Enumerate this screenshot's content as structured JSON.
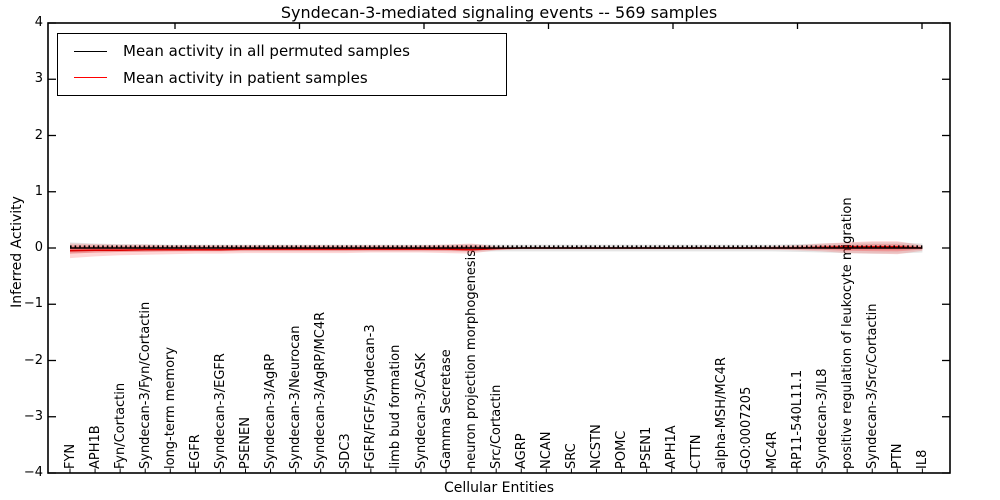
{
  "title": "Syndecan-3-mediated signaling events -- 569 samples",
  "axes": {
    "x_label": "Cellular Entities",
    "y_label": "Inferred Activity",
    "y_tick_labels": [
      "4",
      "3",
      "2",
      "1",
      "0",
      "−1",
      "−2",
      "−3",
      "−4"
    ]
  },
  "legend": {
    "items": [
      {
        "label": "Mean activity in all permuted samples",
        "color": "#000000"
      },
      {
        "label": "Mean activity in patient samples",
        "color": "#ff0000"
      }
    ]
  },
  "chart_data": {
    "type": "line",
    "title": "Syndecan-3-mediated signaling events -- 569 samples",
    "xlabel": "Cellular Entities",
    "ylabel": "Inferred Activity",
    "ylim": [
      -4,
      4
    ],
    "yticks": [
      4,
      3,
      2,
      1,
      0,
      -1,
      -2,
      -3,
      -4
    ],
    "grid": false,
    "legend_position": "upper left",
    "x_tick_rotation": 90,
    "categories": [
      "FYN",
      "APH1B",
      "Fyn/Cortactin",
      "Syndecan-3/Fyn/Cortactin",
      "long-term memory",
      "EGFR",
      "Syndecan-3/EGFR",
      "PSENEN",
      "Syndecan-3/AgRP",
      "Syndecan-3/Neurocan",
      "Syndecan-3/AgRP/MC4R",
      "SDC3",
      "FGFR/FGF/Syndecan-3",
      "limb bud formation",
      "Syndecan-3/CASK",
      "Gamma Secretase",
      "neuron projection morphogenesis",
      "Src/Cortactin",
      "AGRP",
      "NCAN",
      "SRC",
      "NCSTN",
      "POMC",
      "PSEN1",
      "APH1A",
      "CTTN",
      "alpha-MSH/MC4R",
      "GO:0007205",
      "MC4R",
      "RP11-540L11.1",
      "Syndecan-3/IL8",
      "positive regulation of leukocyte migration",
      "Syndecan-3/Src/Cortactin",
      "PTN",
      "IL8"
    ],
    "series": [
      {
        "name": "Mean activity in all permuted samples",
        "color": "#000000",
        "style": "solid with dotted overlay",
        "values": [
          0,
          0,
          0,
          0,
          0,
          0,
          0,
          0,
          0,
          0,
          0,
          0,
          0,
          0,
          0,
          0,
          0,
          0,
          0,
          0,
          0,
          0,
          0,
          0,
          0,
          0,
          0,
          0,
          0,
          0,
          0,
          0,
          0,
          0,
          0
        ]
      },
      {
        "name": "Mean activity in patient samples",
        "color": "#ff0000",
        "style": "solid",
        "values": [
          -0.05,
          -0.04,
          -0.04,
          -0.03,
          -0.03,
          -0.03,
          -0.03,
          -0.02,
          -0.02,
          -0.02,
          -0.02,
          -0.02,
          -0.02,
          -0.02,
          -0.02,
          -0.02,
          -0.03,
          -0.01,
          0,
          0,
          0,
          0,
          0,
          0,
          0,
          0,
          0,
          0,
          0,
          0,
          0.01,
          0.02,
          0.02,
          0.02,
          0
        ]
      }
    ],
    "patient_band": {
      "color": "#ff0000",
      "upper": [
        0.08,
        0.07,
        0.06,
        0.06,
        0.05,
        0.05,
        0.05,
        0.05,
        0.05,
        0.05,
        0.05,
        0.05,
        0.05,
        0.05,
        0.05,
        0.06,
        0.08,
        0.03,
        0.02,
        0.02,
        0.02,
        0.02,
        0.02,
        0.02,
        0.02,
        0.02,
        0.02,
        0.02,
        0.03,
        0.05,
        0.08,
        0.1,
        0.12,
        0.12,
        0.05
      ],
      "lower": [
        -0.18,
        -0.15,
        -0.13,
        -0.12,
        -0.11,
        -0.1,
        -0.1,
        -0.09,
        -0.09,
        -0.09,
        -0.09,
        -0.09,
        -0.08,
        -0.08,
        -0.08,
        -0.09,
        -0.1,
        -0.04,
        -0.02,
        -0.02,
        -0.02,
        -0.02,
        -0.02,
        -0.02,
        -0.02,
        -0.02,
        -0.02,
        -0.02,
        -0.03,
        -0.04,
        -0.06,
        -0.09,
        -0.1,
        -0.11,
        -0.05
      ]
    },
    "permuted_band": {
      "color": "#888888",
      "upper": [
        0.1,
        0.08,
        0.07,
        0.07,
        0.06,
        0.06,
        0.06,
        0.06,
        0.06,
        0.06,
        0.06,
        0.06,
        0.06,
        0.06,
        0.06,
        0.06,
        0.07,
        0.06,
        0.06,
        0.06,
        0.06,
        0.06,
        0.06,
        0.06,
        0.06,
        0.06,
        0.06,
        0.06,
        0.06,
        0.07,
        0.08,
        0.09,
        0.1,
        0.1,
        0.08
      ],
      "lower": [
        -0.1,
        -0.08,
        -0.07,
        -0.07,
        -0.06,
        -0.06,
        -0.06,
        -0.06,
        -0.06,
        -0.06,
        -0.06,
        -0.06,
        -0.06,
        -0.06,
        -0.06,
        -0.06,
        -0.07,
        -0.06,
        -0.06,
        -0.06,
        -0.06,
        -0.06,
        -0.06,
        -0.06,
        -0.06,
        -0.06,
        -0.06,
        -0.06,
        -0.06,
        -0.07,
        -0.08,
        -0.09,
        -0.1,
        -0.1,
        -0.08
      ]
    }
  }
}
